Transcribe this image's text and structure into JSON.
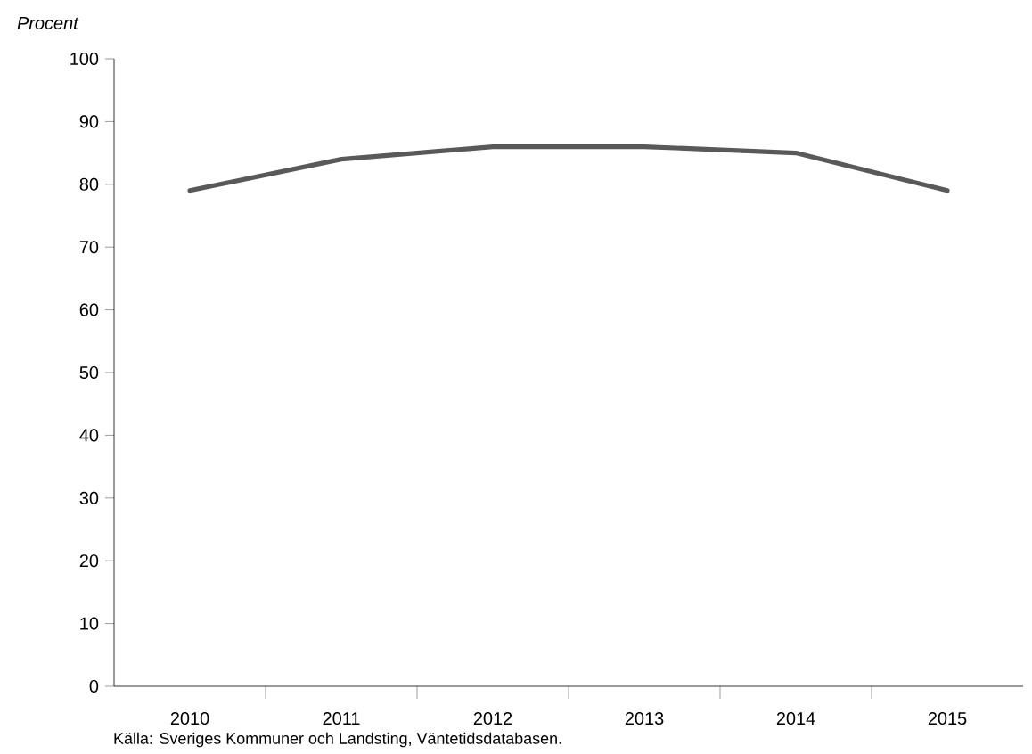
{
  "chart_data": {
    "type": "line",
    "ylabel": "Procent",
    "categories": [
      "2010",
      "2011",
      "2012",
      "2013",
      "2014",
      "2015"
    ],
    "values": [
      79,
      84,
      86,
      86,
      85,
      79
    ],
    "color": "#595959",
    "line_style": "solid",
    "marker": "none",
    "ylim": [
      0,
      100
    ],
    "yticks": [
      0,
      10,
      20,
      30,
      40,
      50,
      60,
      70,
      80,
      90,
      100
    ],
    "annotations": [
      "Källa: Sveriges Kommuner och Landsting, Väntetidsdatabasen."
    ]
  }
}
